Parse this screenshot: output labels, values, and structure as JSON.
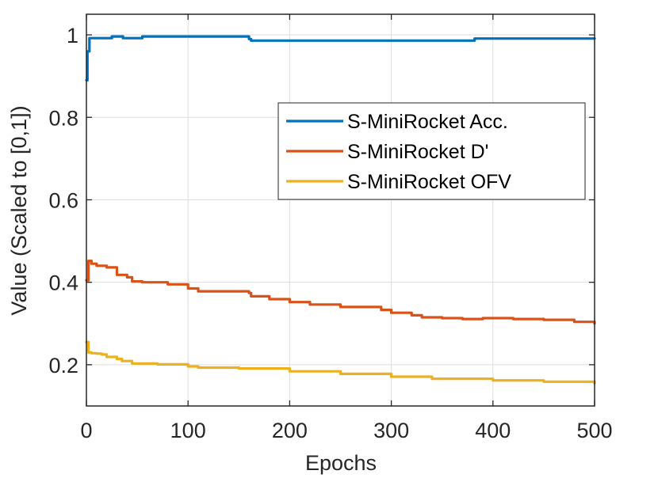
{
  "chart_data": {
    "type": "line",
    "title": "",
    "xlabel": "Epochs",
    "ylabel": "Value (Scaled to [0,1])",
    "xlim": [
      0,
      500
    ],
    "ylim": [
      0.1,
      1.05
    ],
    "xticks": [
      0,
      100,
      200,
      300,
      400,
      500
    ],
    "xtick_labels": [
      "0",
      "100",
      "200",
      "300",
      "400",
      "500"
    ],
    "yticks": [
      0.2,
      0.4,
      0.6,
      0.8,
      1.0
    ],
    "ytick_labels": [
      "0.2",
      "0.4",
      "0.6",
      "0.8",
      "1"
    ],
    "grid": true,
    "legend_position": "right",
    "series": [
      {
        "name": "S-MiniRocket Acc.",
        "color": "#0072BD",
        "step": true,
        "x": [
          0,
          1,
          3,
          20,
          25,
          32,
          36,
          40,
          52,
          55,
          60,
          100,
          150,
          158,
          160,
          162,
          200,
          300,
          378,
          382,
          400,
          500
        ],
        "y": [
          0.89,
          0.96,
          0.992,
          0.992,
          0.996,
          0.996,
          0.992,
          0.992,
          0.992,
          0.996,
          0.996,
          0.996,
          0.996,
          0.996,
          0.99,
          0.986,
          0.986,
          0.986,
          0.986,
          0.991,
          0.991,
          0.991
        ]
      },
      {
        "name": "S-MiniRocket D'",
        "color": "#D95319",
        "step": true,
        "x": [
          0,
          2,
          5,
          10,
          20,
          30,
          40,
          45,
          55,
          80,
          100,
          110,
          160,
          162,
          180,
          200,
          220,
          250,
          290,
          300,
          320,
          330,
          350,
          370,
          390,
          420,
          450,
          480,
          500
        ],
        "y": [
          0.405,
          0.452,
          0.445,
          0.44,
          0.436,
          0.418,
          0.412,
          0.402,
          0.4,
          0.395,
          0.385,
          0.378,
          0.374,
          0.366,
          0.359,
          0.352,
          0.346,
          0.34,
          0.333,
          0.326,
          0.32,
          0.315,
          0.313,
          0.311,
          0.313,
          0.311,
          0.309,
          0.304,
          0.3
        ]
      },
      {
        "name": "S-MiniRocket OFV",
        "color": "#EDB120",
        "step": true,
        "x": [
          0,
          2,
          5,
          10,
          15,
          20,
          30,
          35,
          45,
          70,
          100,
          110,
          150,
          200,
          250,
          300,
          340,
          400,
          450,
          500
        ],
        "y": [
          0.255,
          0.23,
          0.228,
          0.227,
          0.225,
          0.219,
          0.214,
          0.209,
          0.203,
          0.201,
          0.196,
          0.193,
          0.191,
          0.184,
          0.178,
          0.171,
          0.166,
          0.162,
          0.159,
          0.155
        ]
      }
    ]
  }
}
